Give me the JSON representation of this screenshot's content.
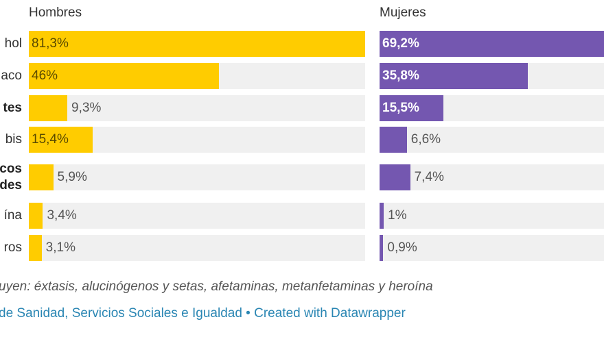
{
  "chart_data": {
    "type": "bar",
    "orientation": "horizontal",
    "title": "",
    "panels": [
      "Hombres",
      "Mujeres"
    ],
    "categories": [
      "hol",
      "aco",
      "tes",
      "bis",
      "cos des",
      "ína",
      "ros"
    ],
    "category_lines": [
      [
        "hol"
      ],
      [
        "aco"
      ],
      [
        "tes"
      ],
      [
        "bis"
      ],
      [
        "cos",
        "des"
      ],
      [
        "ína"
      ],
      [
        "ros"
      ]
    ],
    "category_bold": [
      false,
      false,
      true,
      false,
      true,
      false,
      false
    ],
    "series": [
      {
        "name": "Hombres",
        "color": "#ffcc00",
        "values": [
          81.3,
          46,
          9.3,
          15.4,
          5.9,
          3.4,
          3.1
        ],
        "labels": [
          "81,3%",
          "46%",
          "9,3%",
          "15,4%",
          "5,9%",
          "3,4%",
          "3,1%"
        ]
      },
      {
        "name": "Mujeres",
        "color": "#7457b0",
        "values": [
          69.2,
          35.8,
          15.5,
          6.6,
          7.4,
          1,
          0.9
        ],
        "labels": [
          "69,2%",
          "35,8%",
          "15,5%",
          "6,6%",
          "7,4%",
          "1%",
          "0,9%"
        ]
      }
    ],
    "xlim": [
      0,
      81.3
    ],
    "grid": false,
    "legend": "none",
    "footnote": "uyen: éxtasis, alucinógenos y setas, afetaminas, metanfetaminas y heroína",
    "source": "de Sanidad, Servicios Sociales e Igualdad • Created with Datawrapper"
  }
}
